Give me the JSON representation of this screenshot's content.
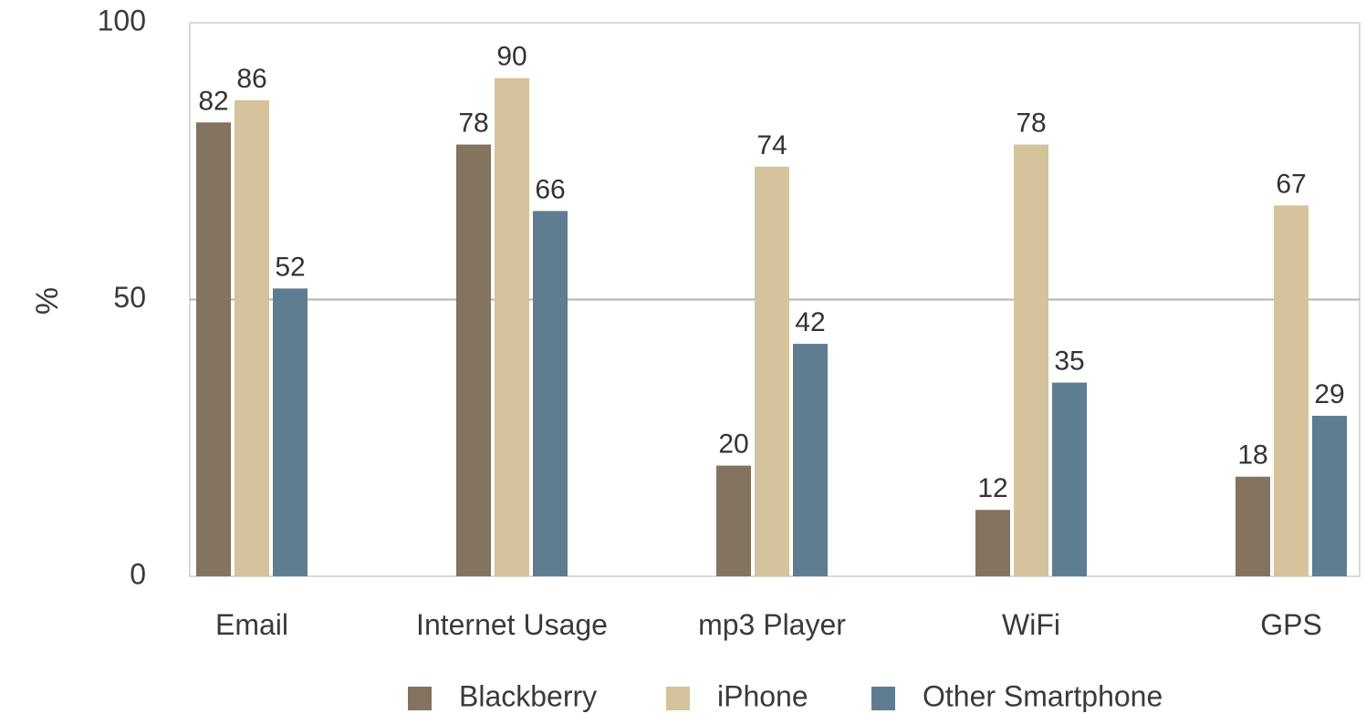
{
  "chart_data": {
    "type": "bar",
    "categories": [
      "Email",
      "Internet Usage",
      "mp3 Player",
      "WiFi",
      "GPS"
    ],
    "series": [
      {
        "name": "Blackberry",
        "color": "#83735f",
        "values": [
          82,
          78,
          20,
          12,
          18
        ]
      },
      {
        "name": "iPhone",
        "color": "#d4c39b",
        "values": [
          86,
          90,
          74,
          78,
          67
        ]
      },
      {
        "name": "Other Smartphone",
        "color": "#5f7d91",
        "values": [
          52,
          66,
          42,
          35,
          29
        ]
      }
    ],
    "title": "",
    "xlabel": "",
    "ylabel": "%",
    "ylim": [
      0,
      100
    ],
    "yticks": [
      {
        "value": 0,
        "label": "0"
      },
      {
        "value": 50,
        "label": "50"
      },
      {
        "value": 100,
        "label": "100"
      }
    ],
    "gridlines": [
      50
    ],
    "grid": true,
    "legend_position": "bottom"
  }
}
